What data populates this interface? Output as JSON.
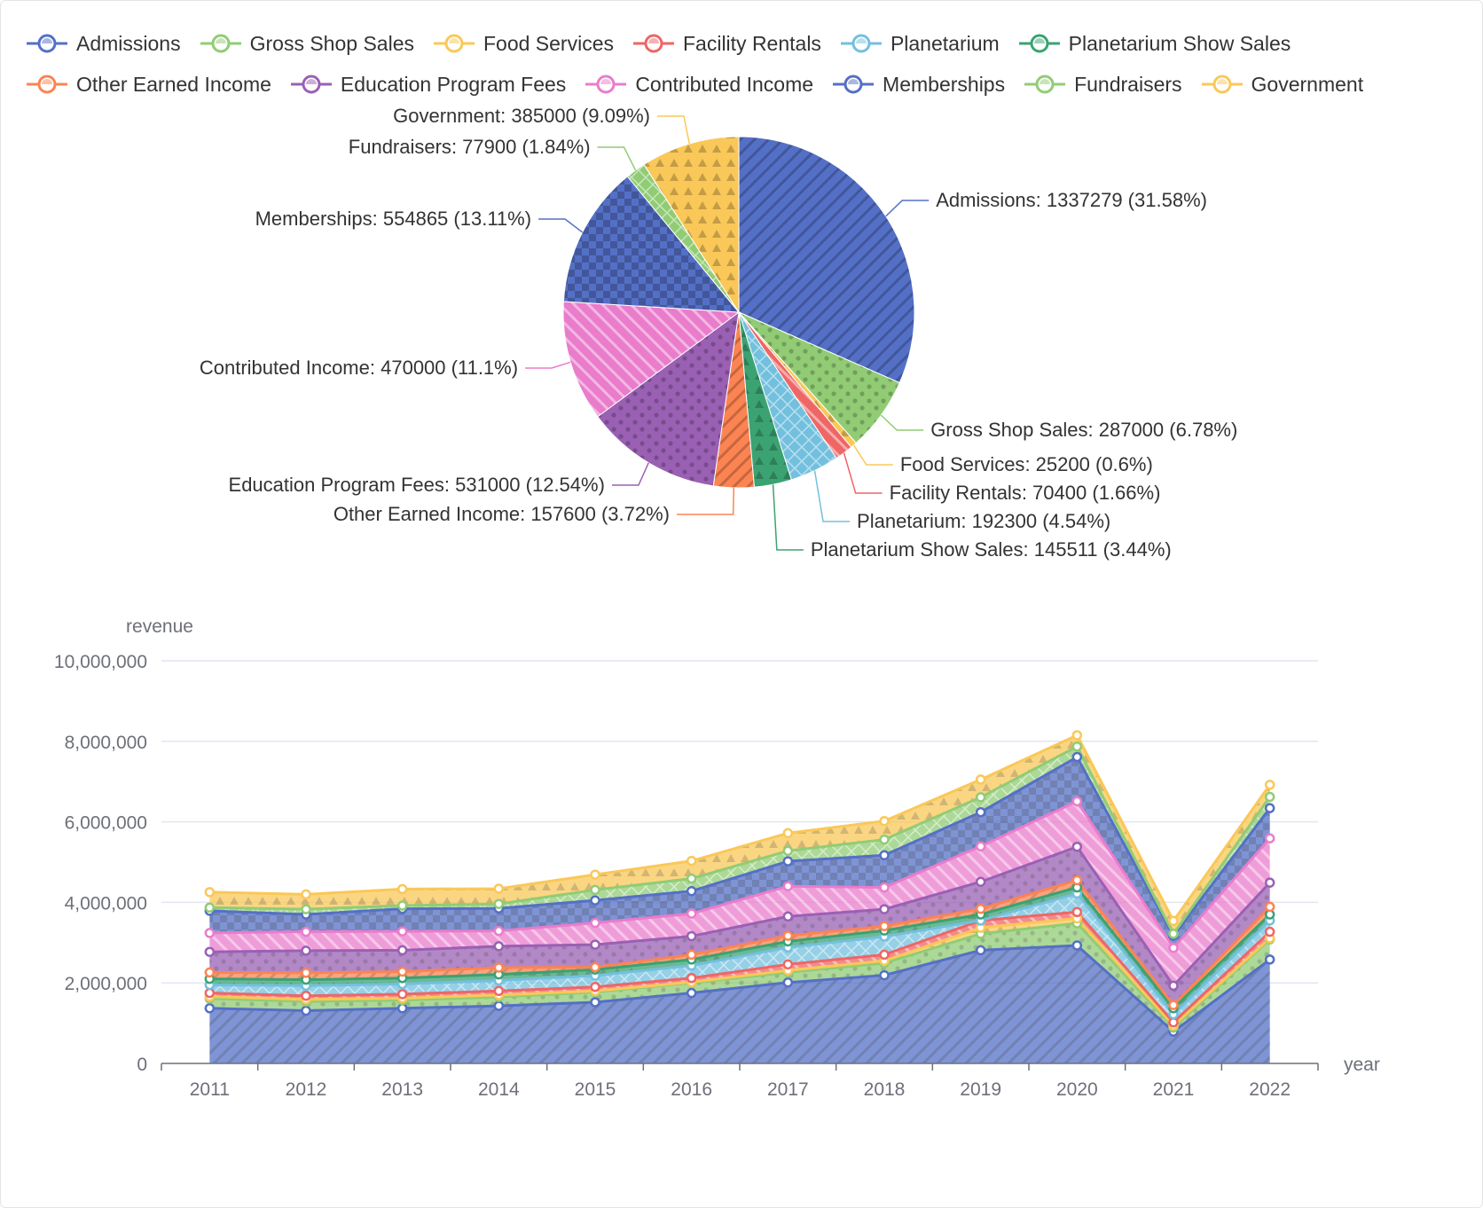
{
  "chart_data": [
    {
      "type": "pie",
      "slices": [
        {
          "name": "Admissions",
          "value": 1337279,
          "pct": "31.58%",
          "color": "#5470c6"
        },
        {
          "name": "Gross Shop Sales",
          "value": 287000,
          "pct": "6.78%",
          "color": "#91cc75"
        },
        {
          "name": "Food Services",
          "value": 25200,
          "pct": "0.6%",
          "color": "#fac858"
        },
        {
          "name": "Facility Rentals",
          "value": 70400,
          "pct": "1.66%",
          "color": "#ee6666"
        },
        {
          "name": "Planetarium",
          "value": 192300,
          "pct": "4.54%",
          "color": "#73c0de"
        },
        {
          "name": "Planetarium Show Sales",
          "value": 145511,
          "pct": "3.44%",
          "color": "#3ba272"
        },
        {
          "name": "Other Earned Income",
          "value": 157600,
          "pct": "3.72%",
          "color": "#fc8452"
        },
        {
          "name": "Education Program Fees",
          "value": 531000,
          "pct": "12.54%",
          "color": "#9a60b4"
        },
        {
          "name": "Contributed Income",
          "value": 470000,
          "pct": "11.1%",
          "color": "#ea7ccc"
        },
        {
          "name": "Memberships",
          "value": 554865,
          "pct": "13.11%",
          "color": "#5470c6"
        },
        {
          "name": "Fundraisers",
          "value": 77900,
          "pct": "1.84%",
          "color": "#91cc75"
        },
        {
          "name": "Government",
          "value": 385000,
          "pct": "9.09%",
          "color": "#fac858"
        }
      ]
    },
    {
      "type": "area",
      "stacked": true,
      "ylabel": "revenue",
      "xlabel": "year",
      "ylim": [
        0,
        10000000
      ],
      "yticks": [
        "0",
        "2,000,000",
        "4,000,000",
        "6,000,000",
        "8,000,000",
        "10,000,000"
      ],
      "categories": [
        "2011",
        "2012",
        "2013",
        "2014",
        "2015",
        "2016",
        "2017",
        "2018",
        "2019",
        "2020",
        "2021",
        "2022"
      ],
      "series": [
        {
          "name": "Admissions",
          "color": "#5470c6",
          "values": [
            1370000,
            1310000,
            1370000,
            1430000,
            1520000,
            1750000,
            2010000,
            2190000,
            2810000,
            2930000,
            790000,
            2580000
          ]
        },
        {
          "name": "Gross Shop Sales",
          "color": "#91cc75",
          "values": [
            240000,
            230000,
            200000,
            220000,
            250000,
            250000,
            250000,
            300000,
            410000,
            550000,
            100000,
            500000
          ]
        },
        {
          "name": "Food Services",
          "color": "#fac858",
          "values": [
            50000,
            50000,
            50000,
            50000,
            30000,
            20000,
            50000,
            60000,
            150000,
            120000,
            50000,
            30000
          ]
        },
        {
          "name": "Facility Rentals",
          "color": "#ee6666",
          "values": [
            90000,
            90000,
            100000,
            100000,
            100000,
            100000,
            150000,
            150000,
            180000,
            160000,
            80000,
            160000
          ]
        },
        {
          "name": "Planetarium",
          "color": "#73c0de",
          "values": [
            200000,
            250000,
            250000,
            260000,
            280000,
            310000,
            420000,
            450000,
            0,
            460000,
            200000,
            280000
          ]
        },
        {
          "name": "Planetarium Show Sales",
          "color": "#3ba272",
          "values": [
            150000,
            150000,
            150000,
            150000,
            150000,
            150000,
            150000,
            150000,
            150000,
            150000,
            150000,
            150000
          ]
        },
        {
          "name": "Other Earned Income",
          "color": "#fc8452",
          "values": [
            160000,
            170000,
            160000,
            170000,
            60000,
            120000,
            140000,
            110000,
            140000,
            180000,
            80000,
            190000
          ]
        },
        {
          "name": "Education Program Fees",
          "color": "#9a60b4",
          "values": [
            510000,
            550000,
            530000,
            530000,
            560000,
            460000,
            480000,
            420000,
            670000,
            830000,
            480000,
            600000
          ]
        },
        {
          "name": "Contributed Income",
          "color": "#ea7ccc",
          "values": [
            470000,
            470000,
            470000,
            380000,
            540000,
            560000,
            750000,
            540000,
            880000,
            1130000,
            940000,
            1100000
          ]
        },
        {
          "name": "Memberships",
          "color": "#5470c6",
          "values": [
            550000,
            430000,
            560000,
            560000,
            560000,
            560000,
            620000,
            800000,
            850000,
            1100000,
            300000,
            750000
          ]
        },
        {
          "name": "Fundraisers",
          "color": "#91cc75",
          "values": [
            80000,
            130000,
            80000,
            110000,
            260000,
            310000,
            260000,
            390000,
            370000,
            260000,
            50000,
            280000
          ]
        },
        {
          "name": "Government",
          "color": "#fac858",
          "values": [
            385000,
            370000,
            410000,
            380000,
            380000,
            440000,
            440000,
            460000,
            440000,
            280000,
            320000,
            300000
          ]
        }
      ]
    }
  ]
}
